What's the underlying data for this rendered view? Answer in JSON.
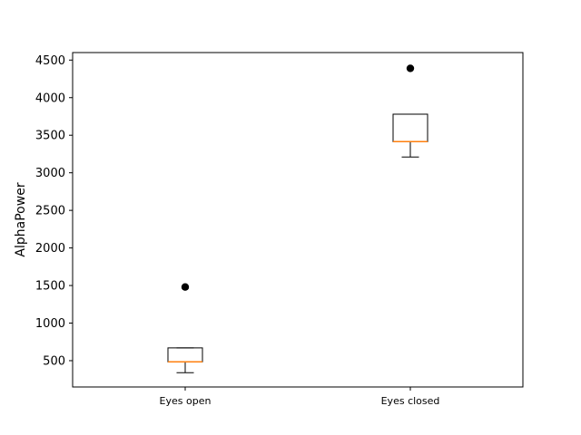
{
  "chart_data": {
    "type": "box",
    "title": "",
    "xlabel": "",
    "ylabel": "AlphaPower",
    "categories": [
      "Eyes open",
      "Eyes closed"
    ],
    "ylim": [
      150,
      4600
    ],
    "yticks": [
      500,
      1000,
      1500,
      2000,
      2500,
      3000,
      3500,
      4000,
      4500
    ],
    "grid": false,
    "boxes": [
      {
        "category": "Eyes open",
        "whisker_low": 340,
        "q1": 485,
        "median": 485,
        "q3": 670,
        "whisker_high": 670,
        "fliers": [
          1480
        ]
      },
      {
        "category": "Eyes closed",
        "whisker_low": 3210,
        "q1": 3415,
        "median": 3415,
        "q3": 3780,
        "whisker_high": 3780,
        "fliers": [
          4390
        ]
      }
    ],
    "colors": {
      "box": "#000000",
      "median": "#ff7f0e",
      "whisker": "#000000",
      "flier": "#000000",
      "axes": "#000000"
    }
  }
}
